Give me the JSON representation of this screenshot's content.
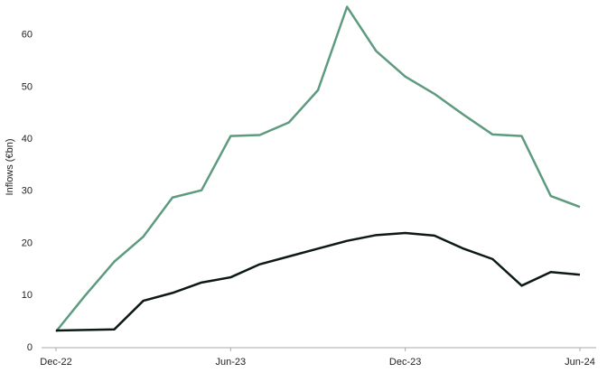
{
  "chart_data": {
    "type": "line",
    "y_label": "Inflows (€bn)",
    "categories": [
      "Dec-22",
      null,
      null,
      null,
      null,
      null,
      "Jun-23",
      null,
      null,
      null,
      null,
      null,
      "Dec-23",
      null,
      null,
      null,
      null,
      null,
      "Jun-24"
    ],
    "series": [
      {
        "color": "#5e9b7e",
        "values": [
          3.1,
          10,
          16.5,
          21.3,
          28.8,
          30.2,
          40.6,
          40.8,
          43.2,
          49.4,
          65.4,
          56.9,
          52.0,
          48.7,
          44.7,
          40.9,
          40.6,
          29.1,
          27.0
        ]
      },
      {
        "color": "#0d1a14",
        "values": [
          3.3,
          3.4,
          3.5,
          9.0,
          10.5,
          12.5,
          13.5,
          16.0,
          17.5,
          19.0,
          20.5,
          21.6,
          22.0,
          21.5,
          19.0,
          17.0,
          11.9,
          14.5,
          14.0
        ]
      }
    ],
    "ylim": [
      0,
      66.7
    ],
    "yticks": [
      0,
      10,
      20,
      30,
      40,
      50,
      60
    ],
    "grid": false
  }
}
